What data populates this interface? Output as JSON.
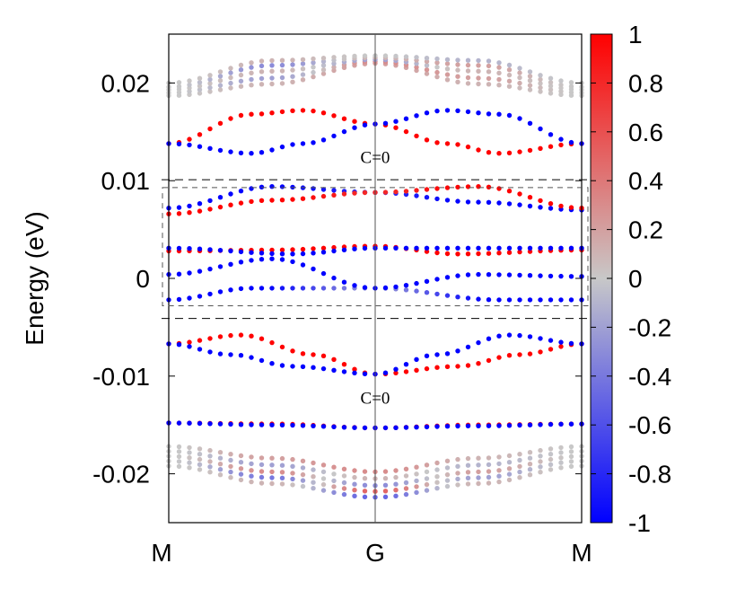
{
  "chart_data": {
    "type": "scatter",
    "title": "",
    "xlabel": "",
    "ylabel": "Energy (eV)",
    "x_ticks": [
      "M",
      "G",
      "M"
    ],
    "xlim": [
      0,
      2
    ],
    "ylim": [
      -0.025,
      0.025
    ],
    "y_ticks": [
      {
        "value": 0.02,
        "label": "0.02"
      },
      {
        "value": 0.01,
        "label": "0.01"
      },
      {
        "value": 0,
        "label": "0"
      },
      {
        "value": -0.01,
        "label": "-0.01"
      },
      {
        "value": -0.02,
        "label": "-0.02"
      }
    ],
    "colorbar": {
      "min": -1,
      "max": 1,
      "colors": {
        "low": "#0000ff",
        "mid": "#c8c8c8",
        "high": "#ff0000"
      },
      "ticks": [
        {
          "value": 1,
          "label": "1"
        },
        {
          "value": 0.8,
          "label": "0.8"
        },
        {
          "value": 0.6,
          "label": "0.6"
        },
        {
          "value": 0.4,
          "label": "0.4"
        },
        {
          "value": 0.2,
          "label": "0.2"
        },
        {
          "value": 0,
          "label": "0"
        },
        {
          "value": -0.2,
          "label": "-0.2"
        },
        {
          "value": -0.4,
          "label": "-0.4"
        },
        {
          "value": -0.6,
          "label": "-0.6"
        },
        {
          "value": -0.8,
          "label": "-0.8"
        },
        {
          "value": -1,
          "label": "-1"
        }
      ]
    },
    "annotations": [
      {
        "text": "C=0",
        "x": 1.0,
        "y": 0.0118
      },
      {
        "text": "C=0",
        "x": 1.0,
        "y": -0.0128
      }
    ],
    "dashed_lines": [
      0.0101,
      -0.0041
    ],
    "inner_box": [
      -0.0028,
      0.0093
    ],
    "bands": [
      {
        "name": "top-band-1",
        "points": [
          [
            0,
            0.0187,
            0
          ],
          [
            0.5,
            0.0199,
            0.1
          ],
          [
            1,
            0.022,
            0.2
          ],
          [
            1.5,
            0.0199,
            0.1
          ],
          [
            2,
            0.0187,
            0
          ]
        ]
      },
      {
        "name": "top-band-2",
        "points": [
          [
            0,
            0.019,
            0
          ],
          [
            0.5,
            0.0205,
            -0.2
          ],
          [
            1,
            0.0222,
            0.3
          ],
          [
            1.5,
            0.0205,
            0.2
          ],
          [
            2,
            0.019,
            0
          ]
        ]
      },
      {
        "name": "top-band-3",
        "points": [
          [
            0,
            0.0193,
            0
          ],
          [
            0.5,
            0.0212,
            0.1
          ],
          [
            1,
            0.0224,
            -0.2
          ],
          [
            1.5,
            0.0212,
            0.1
          ],
          [
            2,
            0.0193,
            0
          ]
        ]
      },
      {
        "name": "top-band-4",
        "points": [
          [
            0,
            0.0196,
            0
          ],
          [
            0.5,
            0.0218,
            -0.3
          ],
          [
            1,
            0.0226,
            0.1
          ],
          [
            1.5,
            0.0218,
            0.2
          ],
          [
            2,
            0.0196,
            0
          ]
        ]
      },
      {
        "name": "top-band-5",
        "points": [
          [
            0,
            0.02,
            0
          ],
          [
            0.5,
            0.0223,
            0.1
          ],
          [
            1,
            0.0228,
            0
          ],
          [
            1.5,
            0.0223,
            -0.1
          ],
          [
            2,
            0.02,
            0
          ]
        ]
      },
      {
        "name": "band-upper-a",
        "points": [
          [
            0,
            0.0138,
            1
          ],
          [
            0.4,
            0.0168,
            1
          ],
          [
            0.65,
            0.0172,
            1
          ],
          [
            1,
            0.0158,
            1
          ],
          [
            1.35,
            0.0138,
            1
          ],
          [
            1.6,
            0.0128,
            1
          ],
          [
            2,
            0.0138,
            1
          ]
        ]
      },
      {
        "name": "band-upper-b",
        "points": [
          [
            0,
            0.0138,
            -1
          ],
          [
            0.4,
            0.0128,
            -1
          ],
          [
            0.65,
            0.0138,
            -1
          ],
          [
            1,
            0.0158,
            -1
          ],
          [
            1.35,
            0.0172,
            -1
          ],
          [
            1.6,
            0.0168,
            -1
          ],
          [
            2,
            0.0138,
            -1
          ]
        ]
      },
      {
        "name": "band-blue-0.009",
        "points": [
          [
            0,
            0.0072,
            -1
          ],
          [
            0.5,
            0.0094,
            -1
          ],
          [
            1,
            0.0088,
            -0.8
          ],
          [
            1.5,
            0.0078,
            -1
          ],
          [
            2,
            0.007,
            -1
          ]
        ]
      },
      {
        "name": "band-red-0.009",
        "points": [
          [
            0,
            0.0066,
            1
          ],
          [
            0.5,
            0.008,
            1
          ],
          [
            1,
            0.0088,
            0.8
          ],
          [
            1.5,
            0.0094,
            1
          ],
          [
            2,
            0.0072,
            1
          ]
        ]
      },
      {
        "name": "band-red-0.003",
        "points": [
          [
            0,
            0.0028,
            1
          ],
          [
            0.5,
            0.0029,
            1
          ],
          [
            1,
            0.0033,
            1
          ],
          [
            1.4,
            0.0025,
            1
          ],
          [
            2,
            0.0029,
            1
          ]
        ]
      },
      {
        "name": "band-blue-0.003",
        "points": [
          [
            0,
            0.0031,
            -1
          ],
          [
            0.6,
            0.0025,
            -1
          ],
          [
            1,
            0.0031,
            -1
          ],
          [
            1.5,
            0.0031,
            -1
          ],
          [
            2,
            0.0031,
            -1
          ]
        ]
      },
      {
        "name": "band-blue-low",
        "points": [
          [
            0,
            -0.0022,
            -1
          ],
          [
            0.4,
            -0.001,
            -1
          ],
          [
            1,
            -0.001,
            -0.3
          ],
          [
            1.6,
            -0.0022,
            -1
          ],
          [
            2,
            -0.0022,
            -1
          ]
        ]
      },
      {
        "name": "band-blue-0.002",
        "points": [
          [
            0,
            0.0004,
            -1
          ],
          [
            0.5,
            0.002,
            -1
          ],
          [
            1,
            -0.001,
            -1
          ],
          [
            1.5,
            0.0004,
            -1
          ],
          [
            2,
            0.0002,
            -1
          ]
        ]
      },
      {
        "name": "band-lower-a",
        "points": [
          [
            0,
            -0.0067,
            1
          ],
          [
            0.35,
            -0.0058,
            1
          ],
          [
            0.7,
            -0.0078,
            1
          ],
          [
            1,
            -0.0098,
            1
          ],
          [
            1.4,
            -0.009,
            1
          ],
          [
            1.7,
            -0.0078,
            1
          ],
          [
            2,
            -0.0067,
            1
          ]
        ]
      },
      {
        "name": "band-lower-b",
        "points": [
          [
            0,
            -0.0067,
            -1
          ],
          [
            0.3,
            -0.0078,
            -1
          ],
          [
            0.6,
            -0.009,
            -1
          ],
          [
            1,
            -0.0098,
            -1
          ],
          [
            1.3,
            -0.0078,
            -1
          ],
          [
            1.65,
            -0.0058,
            -1
          ],
          [
            2,
            -0.0067,
            -1
          ]
        ]
      },
      {
        "name": "band-lower-c-red",
        "points": [
          [
            0,
            -0.0148,
            1
          ],
          [
            0.5,
            -0.0149,
            1
          ],
          [
            1,
            -0.0153,
            1
          ],
          [
            1.5,
            -0.015,
            1
          ],
          [
            2,
            -0.0149,
            1
          ]
        ]
      },
      {
        "name": "band-lower-c-blue",
        "points": [
          [
            0,
            -0.0148,
            -1
          ],
          [
            0.5,
            -0.015,
            -1
          ],
          [
            1,
            -0.0153,
            -1
          ],
          [
            1.5,
            -0.0151,
            -1
          ],
          [
            2,
            -0.0149,
            -1
          ]
        ]
      },
      {
        "name": "bottom-band-1",
        "points": [
          [
            0,
            -0.0172,
            0
          ],
          [
            0.5,
            -0.0184,
            0.2
          ],
          [
            1,
            -0.0198,
            0.3
          ],
          [
            1.5,
            -0.0184,
            0.1
          ],
          [
            2,
            -0.0172,
            0
          ]
        ]
      },
      {
        "name": "bottom-band-2",
        "points": [
          [
            0,
            -0.0177,
            0
          ],
          [
            0.5,
            -0.0191,
            -0.2
          ],
          [
            1,
            -0.0205,
            0.1
          ],
          [
            1.5,
            -0.0191,
            -0.1
          ],
          [
            2,
            -0.0177,
            0
          ]
        ]
      },
      {
        "name": "bottom-band-3",
        "points": [
          [
            0,
            -0.0182,
            0
          ],
          [
            0.5,
            -0.0198,
            0.3
          ],
          [
            1,
            -0.0212,
            -0.3
          ],
          [
            1.5,
            -0.0198,
            0.2
          ],
          [
            2,
            -0.0182,
            0
          ]
        ]
      },
      {
        "name": "bottom-band-4",
        "points": [
          [
            0,
            -0.0187,
            0
          ],
          [
            0.5,
            -0.0204,
            -0.4
          ],
          [
            1,
            -0.0218,
            0.5
          ],
          [
            1.5,
            -0.0204,
            -0.2
          ],
          [
            2,
            -0.0187,
            0
          ]
        ]
      },
      {
        "name": "bottom-band-5",
        "points": [
          [
            0,
            -0.0192,
            0
          ],
          [
            0.5,
            -0.021,
            0.1
          ],
          [
            1,
            -0.0224,
            -0.5
          ],
          [
            1.5,
            -0.021,
            0.1
          ],
          [
            2,
            -0.0192,
            0
          ]
        ]
      }
    ]
  }
}
